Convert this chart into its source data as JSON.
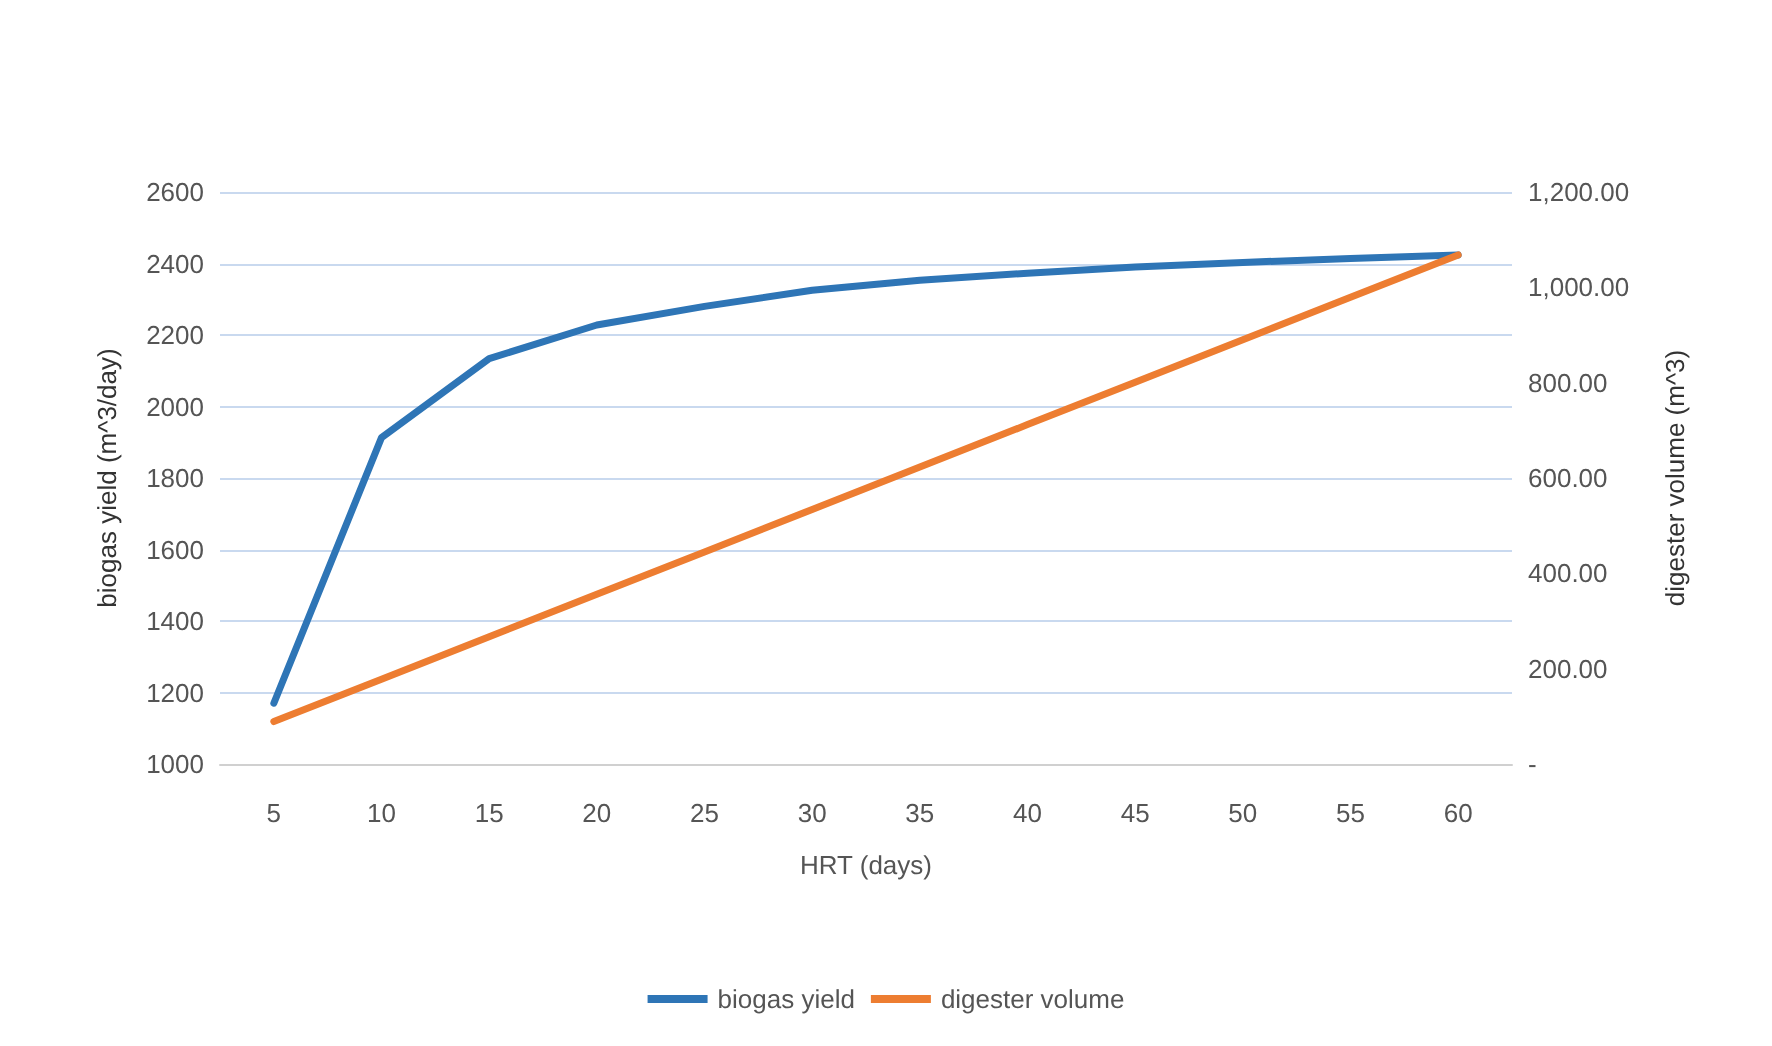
{
  "chart_data": {
    "type": "line",
    "xlabel": "HRT (days)",
    "ylabel": "biogas yield (m^3/day)",
    "y2label": "digester volume (m^3)",
    "categories": [
      "5",
      "10",
      "15",
      "20",
      "25",
      "30",
      "35",
      "40",
      "45",
      "50",
      "55",
      "60"
    ],
    "series": [
      {
        "name": "biogas yield",
        "color": "#2e75b6",
        "values": [
          1170,
          1913,
          2134,
          2228,
          2280,
          2325,
          2353,
          2373,
          2390,
          2403,
          2414,
          2424
        ]
      },
      {
        "name": "digester volume",
        "color": "#ed7d31",
        "axis": "y2",
        "values": [
          89,
          178,
          267,
          356,
          445,
          534,
          623,
          712,
          801,
          890,
          979,
          1068
        ]
      }
    ],
    "ylim": [
      1000,
      2600
    ],
    "yticks": [
      1000,
      1200,
      1400,
      1600,
      1800,
      2000,
      2200,
      2400,
      2600
    ],
    "y2lim": [
      0,
      1200
    ],
    "y2ticks": [
      {
        "value": 0,
        "label": "-"
      },
      {
        "value": 200,
        "label": "200.00"
      },
      {
        "value": 400,
        "label": "400.00"
      },
      {
        "value": 600,
        "label": "600.00"
      },
      {
        "value": 800,
        "label": "800.00"
      },
      {
        "value": 1000,
        "label": "1,000.00"
      },
      {
        "value": 1200,
        "label": "1,200.00"
      }
    ],
    "grid": "y",
    "legend": "bottom",
    "marker": "none",
    "line_style": "solid"
  }
}
